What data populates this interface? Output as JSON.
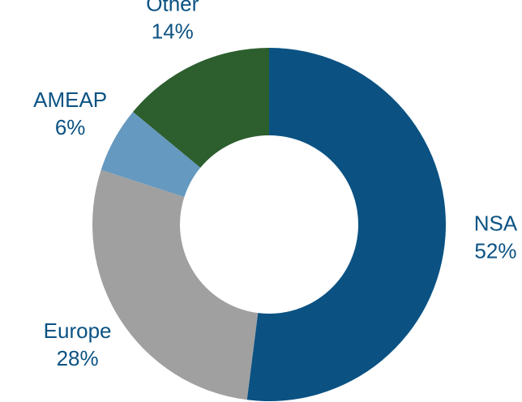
{
  "chart_data": {
    "type": "donut",
    "categories": [
      "NSA",
      "Europe",
      "AMEAP",
      "Other"
    ],
    "values": [
      52,
      28,
      6,
      14
    ],
    "value_labels": [
      "52%",
      "28%",
      "6%",
      "14%"
    ],
    "colors": [
      "#0b5283",
      "#a0a0a0",
      "#6699bf",
      "#2d5e2e"
    ],
    "label_color": "#0b5283"
  }
}
